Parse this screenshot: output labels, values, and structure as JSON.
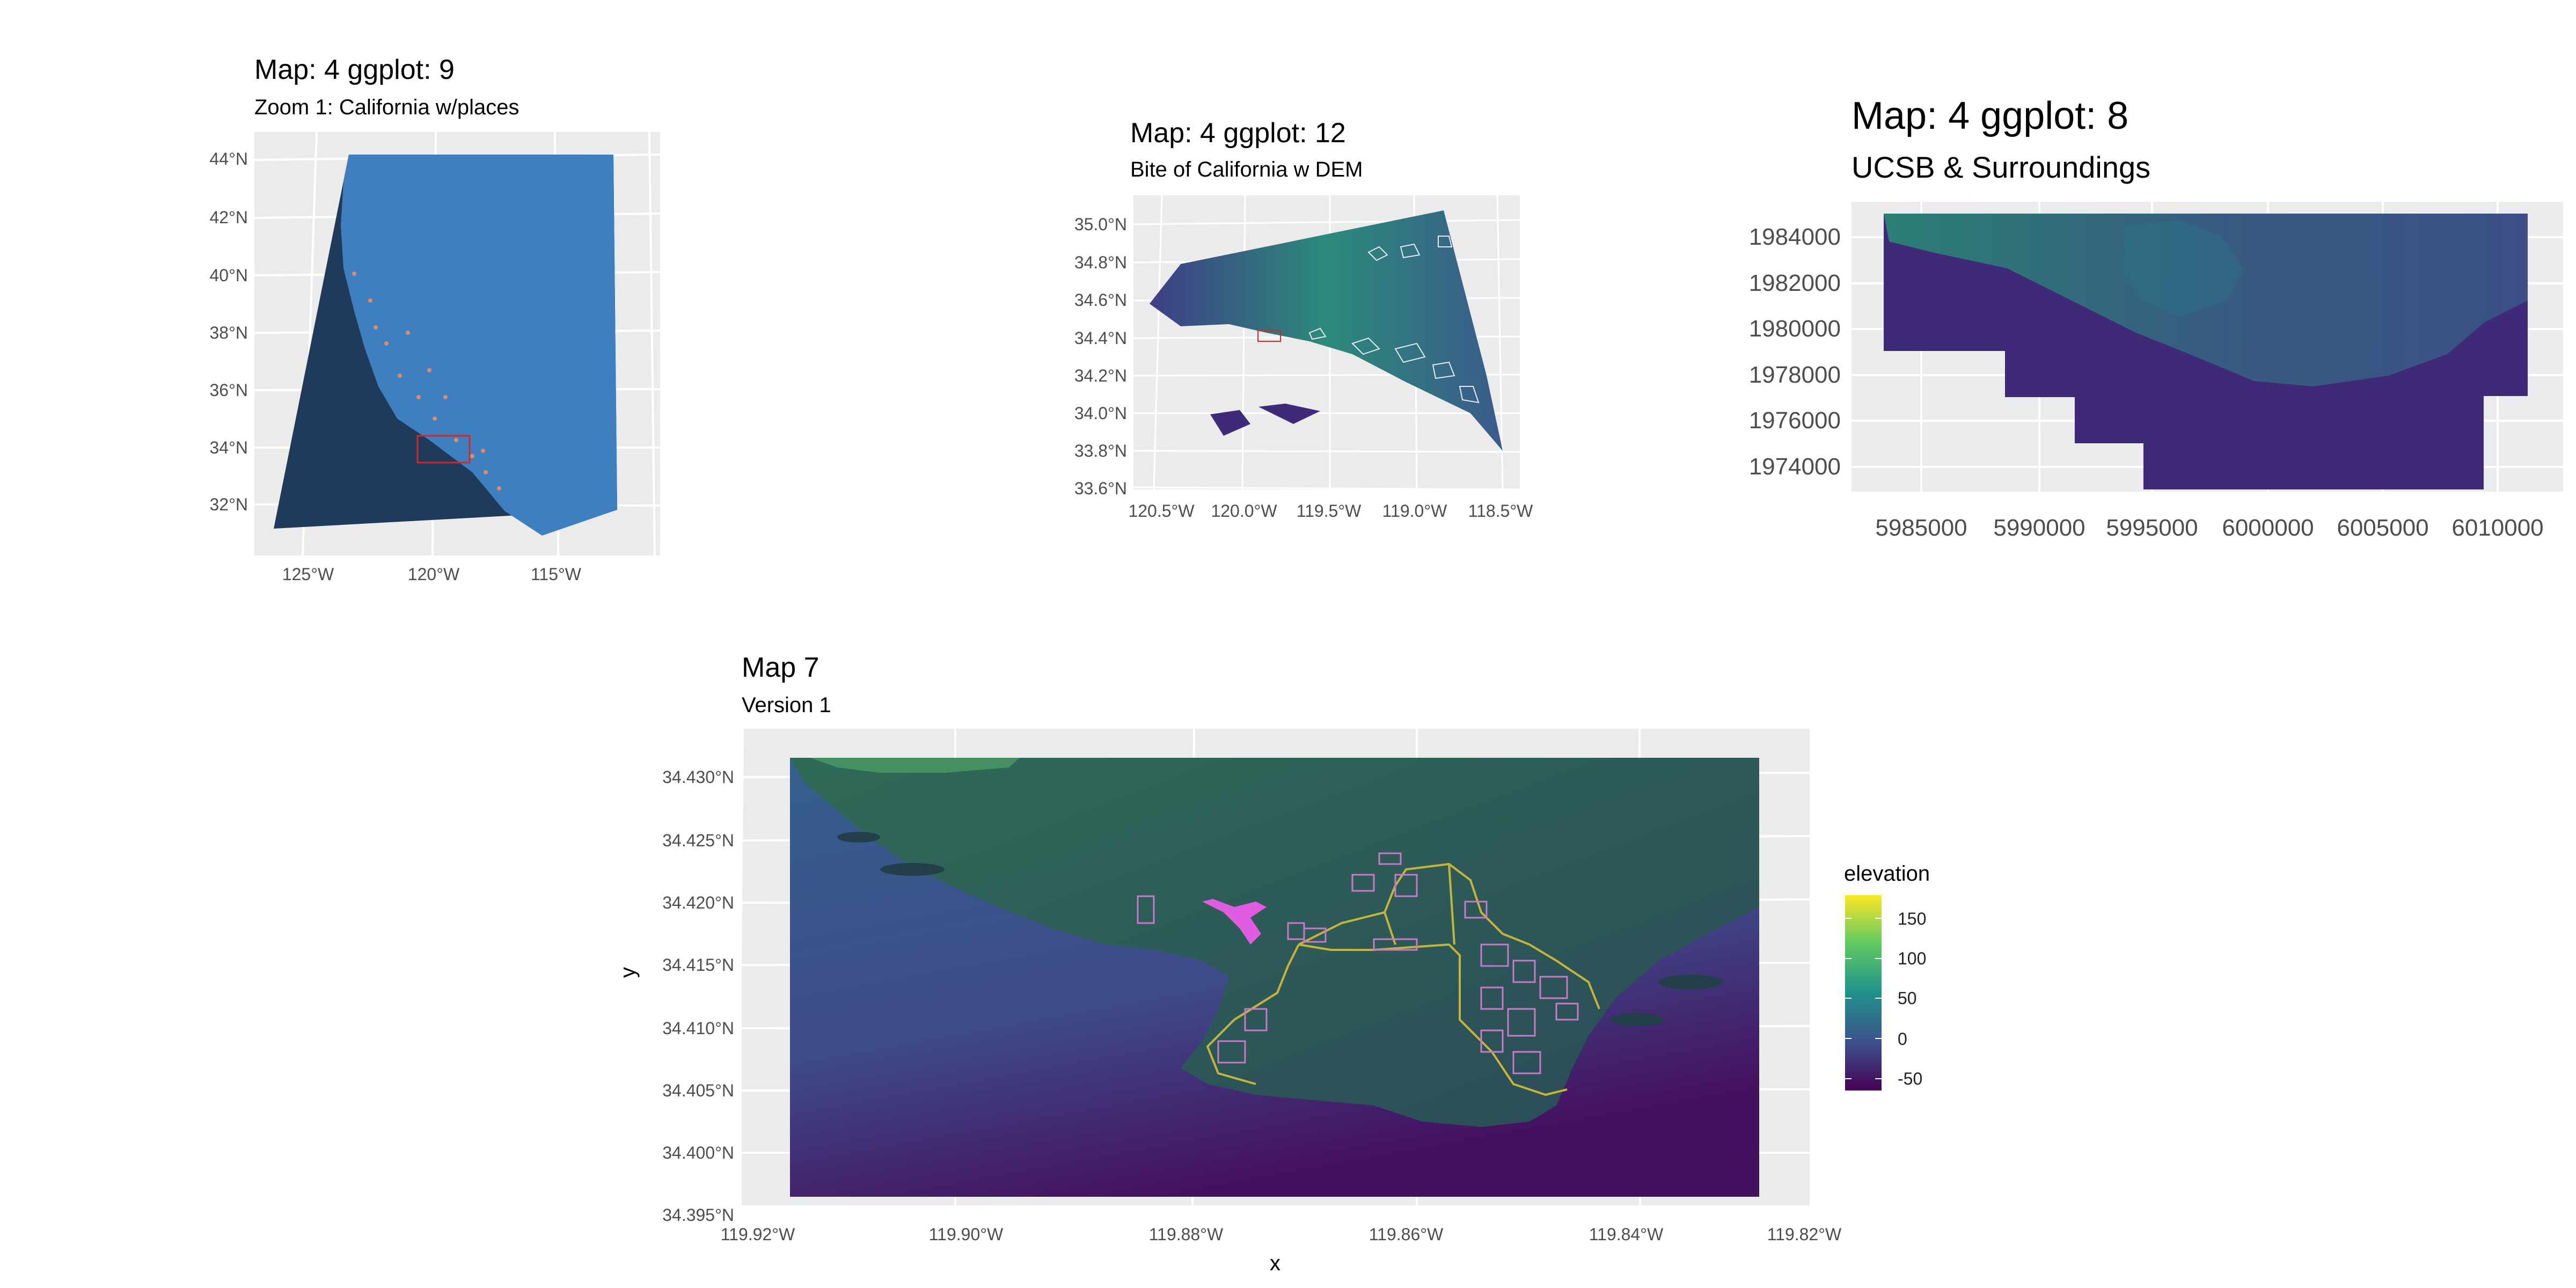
{
  "panels": {
    "p1": {
      "title": "Map: 4  ggplot: 9",
      "subtitle": "Zoom 1: California w/places",
      "y_ticks": [
        "44°N",
        "42°N",
        "40°N",
        "38°N",
        "36°N",
        "34°N",
        "32°N"
      ],
      "x_ticks": [
        "125°W",
        "120°W",
        "115°W"
      ]
    },
    "p2": {
      "title": "Map: 4  ggplot: 12",
      "subtitle": "Bite of California w DEM",
      "y_ticks": [
        "35.0°N",
        "34.8°N",
        "34.6°N",
        "34.4°N",
        "34.2°N",
        "34.0°N",
        "33.8°N",
        "33.6°N"
      ],
      "x_ticks": [
        "120.5°W",
        "120.0°W",
        "119.5°W",
        "119.0°W",
        "118.5°W"
      ]
    },
    "p3": {
      "title": "Map: 4  ggplot: 8",
      "subtitle": "UCSB & Surroundings",
      "y_ticks": [
        "1984000",
        "1982000",
        "1980000",
        "1978000",
        "1976000",
        "1974000"
      ],
      "x_ticks": [
        "5985000",
        "5990000",
        "5995000",
        "6000000",
        "6005000",
        "6010000"
      ]
    },
    "p4": {
      "title": "Map 7",
      "subtitle": "Version 1",
      "y_ticks": [
        "34.430°N",
        "34.425°N",
        "34.420°N",
        "34.415°N",
        "34.410°N",
        "34.405°N",
        "34.400°N",
        "34.395°N"
      ],
      "x_ticks": [
        "119.92°W",
        "119.90°W",
        "119.88°W",
        "119.86°W",
        "119.84°W",
        "119.82°W"
      ],
      "xlabel": "x",
      "ylabel": "y",
      "legend": {
        "title": "elevation",
        "ticks": [
          "150",
          "100",
          "50",
          "0",
          "-50"
        ]
      }
    }
  },
  "colors": {
    "panel_bg": "#ebebeb",
    "grid": "#ffffff",
    "ocean_blue": "#1f3a5a",
    "land_blue": "#3d7fbf",
    "viridis_low": "#440154",
    "viridis_mid": "#21918c",
    "viridis_high": "#fde725",
    "campus_magenta": "#e05ce0"
  }
}
